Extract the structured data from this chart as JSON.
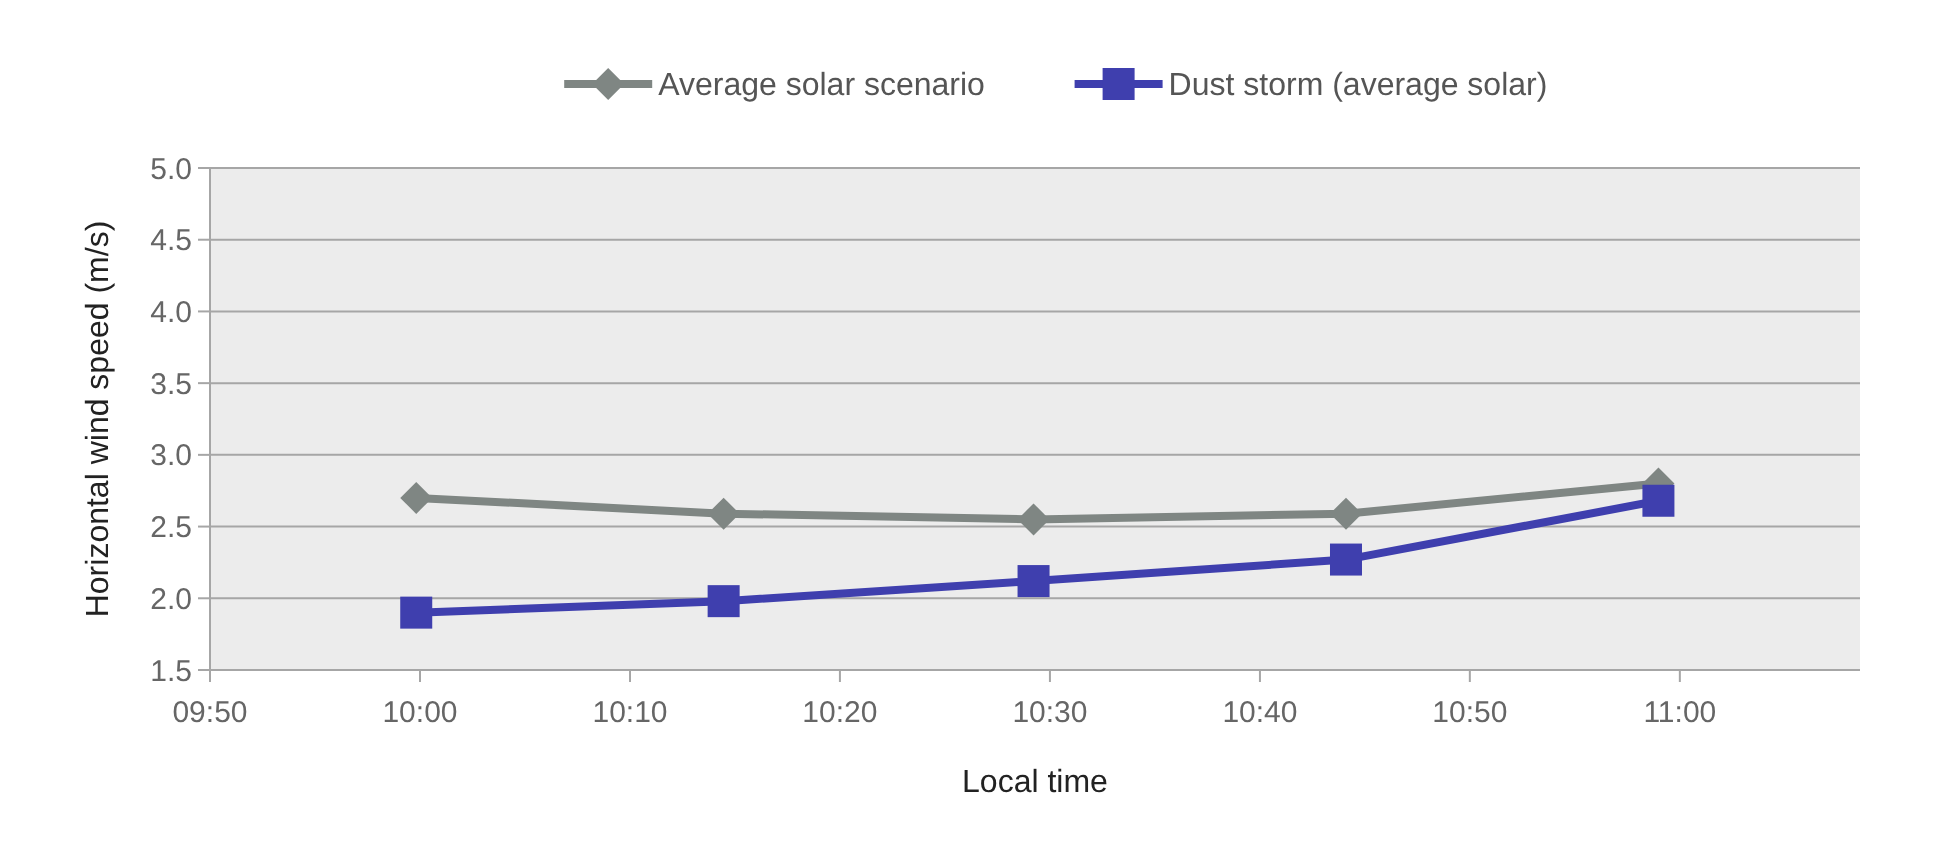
{
  "chart_data": {
    "type": "line",
    "xlabel": "Local time",
    "ylabel": "Horizontal wind speed (m/s)",
    "x": [
      9.997,
      10.241,
      10.487,
      10.735,
      10.983
    ],
    "series": [
      {
        "name": "Average solar scenario",
        "color": "#7f8683",
        "marker": "diamond",
        "values": [
          2.7,
          2.59,
          2.55,
          2.59,
          2.8
        ]
      },
      {
        "name": "Dust storm (average solar)",
        "color": "#3f3fae",
        "marker": "square",
        "values": [
          1.9,
          1.98,
          2.12,
          2.27,
          2.68
        ]
      }
    ],
    "xlim": [
      9.8333,
      11.143
    ],
    "xticks": [
      {
        "value": 9.8333,
        "label": "09:50"
      },
      {
        "value": 10,
        "label": "10:00"
      },
      {
        "value": 10.1667,
        "label": "10:10"
      },
      {
        "value": 10.3333,
        "label": "10:20"
      },
      {
        "value": 10.5,
        "label": "10:30"
      },
      {
        "value": 10.6667,
        "label": "10:40"
      },
      {
        "value": 10.8333,
        "label": "10:50"
      },
      {
        "value": 11,
        "label": "11:00"
      }
    ],
    "ylim": [
      1.5,
      5.0
    ],
    "yticks": [
      1.5,
      {
        "value": 2,
        "label": "2.0"
      },
      2.5,
      {
        "value": 3,
        "label": "3.0"
      },
      3.5,
      {
        "value": 4,
        "label": "4.0"
      },
      4.5,
      {
        "value": 5,
        "label": "5.0"
      }
    ],
    "grid": "y",
    "legend": "top"
  }
}
